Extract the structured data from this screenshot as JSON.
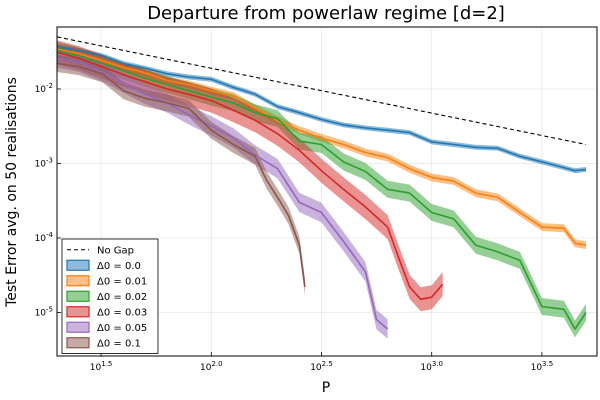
{
  "chart_data": {
    "type": "line",
    "title": "Departure from powerlaw regime [d=2]",
    "xlabel": "P",
    "ylabel": "Test Error avg. on 50 realisations",
    "x_scale": "log",
    "y_scale": "log",
    "xlim": [
      19.95,
      5623
    ],
    "ylim": [
      2.6e-06,
      0.068
    ],
    "grid": true,
    "legend_position": "bottom-left",
    "x_ticks": [
      {
        "value": 31.62,
        "base": "10",
        "exp": "1.5"
      },
      {
        "value": 100,
        "base": "10",
        "exp": "2.0"
      },
      {
        "value": 316.2,
        "base": "10",
        "exp": "2.5"
      },
      {
        "value": 1000,
        "base": "10",
        "exp": "3.0"
      },
      {
        "value": 3162,
        "base": "10",
        "exp": "3.5"
      }
    ],
    "y_ticks": [
      {
        "value": 1e-05,
        "base": "10",
        "exp": "-5"
      },
      {
        "value": 0.0001,
        "base": "10",
        "exp": "-4"
      },
      {
        "value": 0.001,
        "base": "10",
        "exp": "-3"
      },
      {
        "value": 0.01,
        "base": "10",
        "exp": "-2"
      }
    ],
    "reference_line": {
      "name": "No Gap",
      "color": "#000000",
      "style": "dashed",
      "points": [
        [
          20,
          0.05
        ],
        [
          5012,
          0.0018
        ]
      ]
    },
    "series": [
      {
        "name": "Δ0 = 0.0",
        "color": "#1f77b4",
        "points": [
          [
            20,
            0.037
          ],
          [
            25,
            0.033
          ],
          [
            32,
            0.028
          ],
          [
            40,
            0.022
          ],
          [
            50,
            0.019
          ],
          [
            63,
            0.016
          ],
          [
            79,
            0.0145
          ],
          [
            100,
            0.0135
          ],
          [
            126,
            0.0105
          ],
          [
            158,
            0.0085
          ],
          [
            200,
            0.0058
          ],
          [
            251,
            0.0048
          ],
          [
            316,
            0.0039
          ],
          [
            398,
            0.0033
          ],
          [
            501,
            0.003
          ],
          [
            631,
            0.0028
          ],
          [
            794,
            0.0026
          ],
          [
            1000,
            0.00195
          ],
          [
            1259,
            0.0018
          ],
          [
            1585,
            0.00165
          ],
          [
            1995,
            0.0016
          ],
          [
            2512,
            0.00125
          ],
          [
            3162,
            0.00105
          ],
          [
            3981,
            0.00088
          ],
          [
            4467,
            0.0008
          ],
          [
            5012,
            0.00083
          ]
        ],
        "band_rel": 0.08
      },
      {
        "name": "Δ0 = 0.01",
        "color": "#ff7f0e",
        "points": [
          [
            20,
            0.034
          ],
          [
            25,
            0.03
          ],
          [
            32,
            0.024
          ],
          [
            40,
            0.0195
          ],
          [
            50,
            0.0165
          ],
          [
            63,
            0.013
          ],
          [
            79,
            0.0115
          ],
          [
            100,
            0.0095
          ],
          [
            126,
            0.008
          ],
          [
            158,
            0.0055
          ],
          [
            200,
            0.0038
          ],
          [
            251,
            0.0028
          ],
          [
            316,
            0.0022
          ],
          [
            398,
            0.0018
          ],
          [
            501,
            0.0014
          ],
          [
            631,
            0.0012
          ],
          [
            794,
            0.00085
          ],
          [
            1000,
            0.00065
          ],
          [
            1259,
            0.00058
          ],
          [
            1585,
            0.0004
          ],
          [
            1995,
            0.00035
          ],
          [
            2512,
            0.00022
          ],
          [
            3162,
            0.00014
          ],
          [
            3981,
            0.000135
          ],
          [
            4467,
            8.5e-05
          ],
          [
            5012,
            8e-05
          ]
        ],
        "band_rel": 0.13
      },
      {
        "name": "Δ0 = 0.02",
        "color": "#2ca02c",
        "points": [
          [
            20,
            0.033
          ],
          [
            25,
            0.028
          ],
          [
            32,
            0.022
          ],
          [
            40,
            0.0175
          ],
          [
            50,
            0.014
          ],
          [
            63,
            0.0115
          ],
          [
            79,
            0.0095
          ],
          [
            100,
            0.0078
          ],
          [
            126,
            0.0065
          ],
          [
            158,
            0.0048
          ],
          [
            200,
            0.004
          ],
          [
            251,
            0.002
          ],
          [
            316,
            0.0018
          ],
          [
            398,
            0.00105
          ],
          [
            501,
            0.00078
          ],
          [
            631,
            0.00045
          ],
          [
            794,
            0.0004
          ],
          [
            1000,
            0.00022
          ],
          [
            1259,
            0.00018
          ],
          [
            1585,
            8e-05
          ],
          [
            1995,
            6.5e-05
          ],
          [
            2512,
            5e-05
          ],
          [
            3162,
            1.2e-05
          ],
          [
            3981,
            1.1e-05
          ],
          [
            4467,
            6e-06
          ],
          [
            5012,
            1e-05
          ]
        ],
        "band_rel": 0.3
      },
      {
        "name": "Δ0 = 0.03",
        "color": "#d62728",
        "points": [
          [
            20,
            0.031
          ],
          [
            25,
            0.026
          ],
          [
            32,
            0.02
          ],
          [
            40,
            0.0155
          ],
          [
            50,
            0.0125
          ],
          [
            63,
            0.01
          ],
          [
            79,
            0.0085
          ],
          [
            100,
            0.007
          ],
          [
            126,
            0.0052
          ],
          [
            158,
            0.0038
          ],
          [
            200,
            0.0025
          ],
          [
            251,
            0.0015
          ],
          [
            316,
            0.0008
          ],
          [
            398,
            0.00045
          ],
          [
            501,
            0.00026
          ],
          [
            631,
            0.00014
          ],
          [
            707,
            5.5e-05
          ],
          [
            794,
            2.2e-05
          ],
          [
            891,
            1.5e-05
          ],
          [
            1000,
            1.6e-05
          ],
          [
            1122,
            2.4e-05
          ]
        ],
        "band_rel": 0.45
      },
      {
        "name": "Δ0 = 0.05",
        "color": "#9467bd",
        "points": [
          [
            20,
            0.026
          ],
          [
            25,
            0.023
          ],
          [
            32,
            0.017
          ],
          [
            40,
            0.012
          ],
          [
            50,
            0.0085
          ],
          [
            63,
            0.0065
          ],
          [
            79,
            0.0045
          ],
          [
            100,
            0.0032
          ],
          [
            126,
            0.0022
          ],
          [
            158,
            0.0013
          ],
          [
            200,
            0.00085
          ],
          [
            251,
            0.0003
          ],
          [
            316,
            0.00022
          ],
          [
            398,
            9e-05
          ],
          [
            501,
            3.5e-05
          ],
          [
            562,
            8e-06
          ],
          [
            631,
            6e-06
          ]
        ],
        "band_rel": 0.35
      },
      {
        "name": "Δ0 = 0.1",
        "color": "#8c564b",
        "points": [
          [
            20,
            0.022
          ],
          [
            25,
            0.02
          ],
          [
            32,
            0.016
          ],
          [
            40,
            0.0095
          ],
          [
            50,
            0.0075
          ],
          [
            63,
            0.0065
          ],
          [
            79,
            0.0055
          ],
          [
            100,
            0.0028
          ],
          [
            126,
            0.0018
          ],
          [
            158,
            0.00125
          ],
          [
            178,
            0.0006
          ],
          [
            200,
            0.00035
          ],
          [
            224,
            0.0002
          ],
          [
            251,
            8e-05
          ],
          [
            266,
            2.2e-05
          ]
        ],
        "band_rel": 0.3
      }
    ]
  }
}
